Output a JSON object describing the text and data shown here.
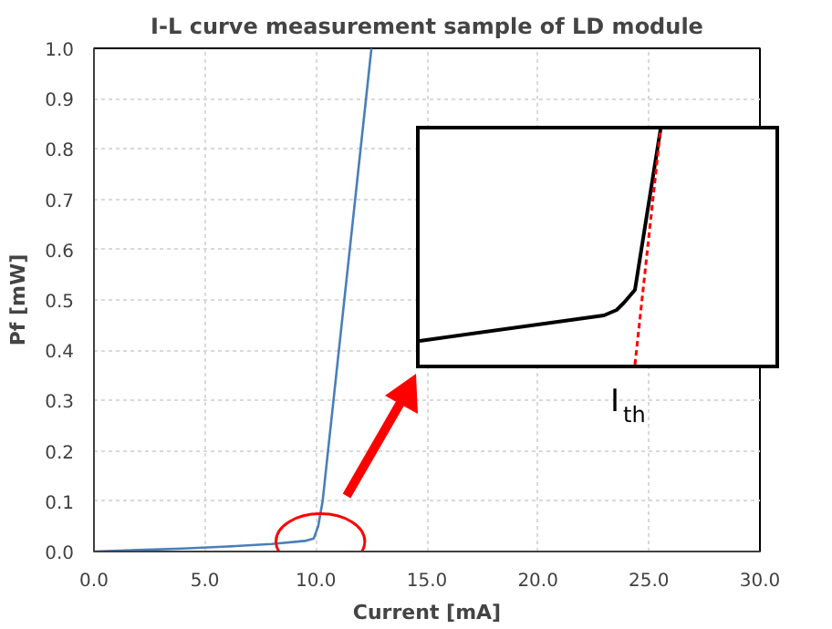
{
  "chart_data": {
    "type": "line",
    "title": "I-L curve measurement sample of LD module",
    "xlabel": "Current [mA]",
    "ylabel": "Pf [mW]",
    "x": [
      0,
      2,
      4,
      6,
      8,
      9.5,
      9.9,
      10.1,
      10.3,
      12.5
    ],
    "series": [
      {
        "color": "#4a7ebb",
        "values": [
          0,
          0.003,
          0.006,
          0.01,
          0.015,
          0.021,
          0.026,
          0.05,
          0.1,
          1.0
        ]
      }
    ],
    "xlim": [
      0,
      30
    ],
    "ylim": [
      0,
      1
    ],
    "xticks": [
      {
        "value": 0,
        "label": "0.0"
      },
      {
        "value": 5,
        "label": "5.0"
      },
      {
        "value": 10,
        "label": "10.0"
      },
      {
        "value": 15,
        "label": "15.0"
      },
      {
        "value": 20,
        "label": "20.0"
      },
      {
        "value": 25,
        "label": "25.0"
      },
      {
        "value": 30,
        "label": "30.0"
      }
    ],
    "yticks": [
      {
        "value": 0,
        "label": "0.0"
      },
      {
        "value": 0.1,
        "label": "0.1"
      },
      {
        "value": 0.2,
        "label": "0.2"
      },
      {
        "value": 0.3,
        "label": "0.3"
      },
      {
        "value": 0.4,
        "label": "0.4"
      },
      {
        "value": 0.5,
        "label": "0.5"
      },
      {
        "value": 0.6,
        "label": "0.6"
      },
      {
        "value": 0.7,
        "label": "0.7"
      },
      {
        "value": 0.8,
        "label": "0.8"
      },
      {
        "value": 0.9,
        "label": "0.9"
      },
      {
        "value": 1.0,
        "label": "1.0"
      }
    ],
    "grid": true,
    "line_style": "solid",
    "marker": "none",
    "annotations": [
      "I$_{th}$"
    ]
  }
}
